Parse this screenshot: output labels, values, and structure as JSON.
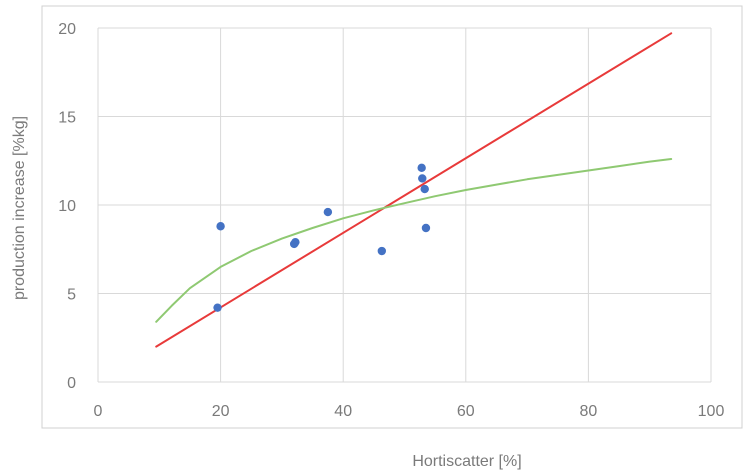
{
  "chart_data": {
    "type": "scatter",
    "title": "",
    "xlabel": "Hortiscatter [%]",
    "ylabel": "production increase [%kg]",
    "xlim": [
      0,
      100
    ],
    "ylim": [
      0,
      20
    ],
    "x_ticks": [
      0,
      20,
      40,
      60,
      80,
      100
    ],
    "y_ticks": [
      0,
      5,
      10,
      15,
      20
    ],
    "grid": true,
    "legend": "none",
    "series": [
      {
        "type": "scatter",
        "color": "#4472c4",
        "points": [
          {
            "x": 19.5,
            "y": 4.2
          },
          {
            "x": 20.0,
            "y": 8.8
          },
          {
            "x": 32.0,
            "y": 7.8
          },
          {
            "x": 32.2,
            "y": 7.9
          },
          {
            "x": 37.5,
            "y": 9.6
          },
          {
            "x": 46.3,
            "y": 7.4
          },
          {
            "x": 52.8,
            "y": 12.1
          },
          {
            "x": 52.9,
            "y": 11.5
          },
          {
            "x": 53.3,
            "y": 10.9
          },
          {
            "x": 53.5,
            "y": 8.7
          }
        ]
      },
      {
        "type": "line",
        "color": "#e83a3a",
        "x": [
          9.5,
          93.5
        ],
        "y": [
          2.0,
          19.7
        ]
      },
      {
        "type": "line",
        "color": "#8fc972",
        "x": [
          9.5,
          12,
          15,
          20,
          25,
          30,
          35,
          40,
          45,
          50,
          55,
          60,
          65,
          70,
          75,
          80,
          85,
          90,
          93.5
        ],
        "y": [
          3.4,
          4.3,
          5.3,
          6.5,
          7.4,
          8.1,
          8.7,
          9.25,
          9.7,
          10.1,
          10.5,
          10.85,
          11.15,
          11.45,
          11.7,
          11.95,
          12.2,
          12.45,
          12.6
        ]
      }
    ]
  }
}
